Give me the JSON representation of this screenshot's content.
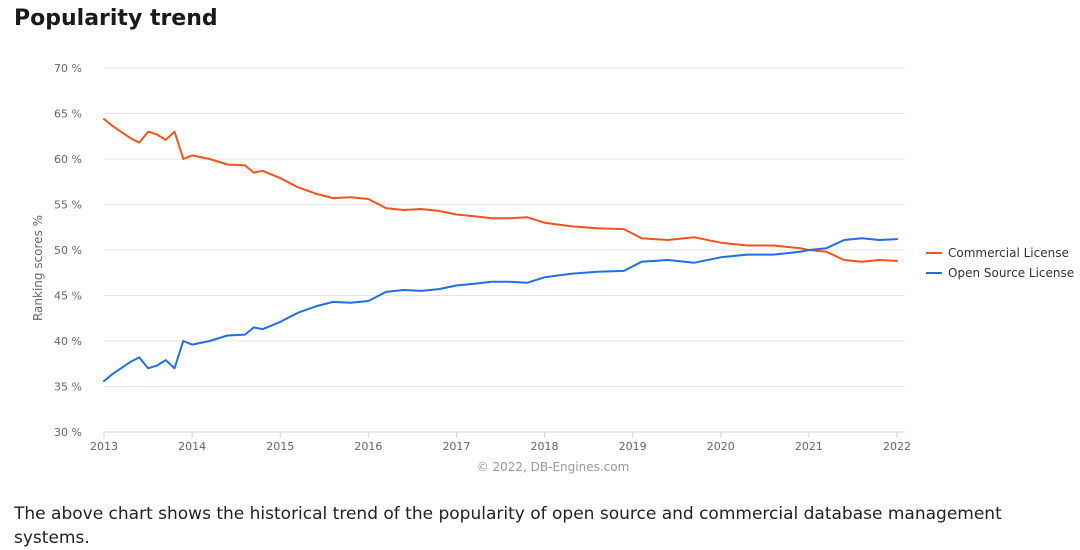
{
  "header": {
    "title": "Popularity trend"
  },
  "description": "The above chart shows the historical trend of the popularity of open source and commercial database management systems.",
  "chart_data": {
    "type": "line",
    "title": "Popularity trend",
    "xlabel": "",
    "ylabel": "Ranking scores %",
    "credits": "© 2022, DB-Engines.com",
    "xlim": [
      2013,
      2022
    ],
    "ylim": [
      30,
      70
    ],
    "xticks": [
      "2013",
      "2014",
      "2015",
      "2016",
      "2017",
      "2018",
      "2019",
      "2020",
      "2021",
      "2022"
    ],
    "yticks": [
      "30 %",
      "35 %",
      "40 %",
      "45 %",
      "50 %",
      "55 %",
      "60 %",
      "65 %",
      "70 %"
    ],
    "grid": "horizontal",
    "legend_position": "right",
    "series": [
      {
        "name": "Commercial License",
        "color": "#f0541d",
        "x": [
          2013.0,
          2013.1,
          2013.3,
          2013.4,
          2013.5,
          2013.6,
          2013.7,
          2013.8,
          2013.9,
          2014.0,
          2014.2,
          2014.4,
          2014.6,
          2014.7,
          2014.8,
          2015.0,
          2015.2,
          2015.4,
          2015.6,
          2015.8,
          2016.0,
          2016.2,
          2016.4,
          2016.6,
          2016.8,
          2017.0,
          2017.2,
          2017.4,
          2017.6,
          2017.8,
          2018.0,
          2018.3,
          2018.6,
          2018.9,
          2019.1,
          2019.4,
          2019.7,
          2020.0,
          2020.3,
          2020.6,
          2020.9,
          2021.0,
          2021.2,
          2021.4,
          2021.6,
          2021.8,
          2022.0
        ],
        "values": [
          64.4,
          63.6,
          62.3,
          61.8,
          63.0,
          62.7,
          62.1,
          63.0,
          60.0,
          60.4,
          60.0,
          59.4,
          59.3,
          58.5,
          58.7,
          57.9,
          56.9,
          56.2,
          55.7,
          55.8,
          55.6,
          54.6,
          54.4,
          54.5,
          54.3,
          53.9,
          53.7,
          53.5,
          53.5,
          53.6,
          53.0,
          52.6,
          52.4,
          52.3,
          51.3,
          51.1,
          51.4,
          50.8,
          50.5,
          50.5,
          50.2,
          50.0,
          49.8,
          48.9,
          48.7,
          48.9,
          48.8
        ]
      },
      {
        "name": "Open Source License",
        "color": "#1f6fe5",
        "x": [
          2013.0,
          2013.1,
          2013.3,
          2013.4,
          2013.5,
          2013.6,
          2013.7,
          2013.8,
          2013.9,
          2014.0,
          2014.2,
          2014.4,
          2014.6,
          2014.7,
          2014.8,
          2015.0,
          2015.2,
          2015.4,
          2015.6,
          2015.8,
          2016.0,
          2016.2,
          2016.4,
          2016.6,
          2016.8,
          2017.0,
          2017.2,
          2017.4,
          2017.6,
          2017.8,
          2018.0,
          2018.3,
          2018.6,
          2018.9,
          2019.1,
          2019.4,
          2019.7,
          2020.0,
          2020.3,
          2020.6,
          2020.9,
          2021.0,
          2021.2,
          2021.4,
          2021.6,
          2021.8,
          2022.0
        ],
        "values": [
          35.6,
          36.4,
          37.7,
          38.2,
          37.0,
          37.3,
          37.9,
          37.0,
          40.0,
          39.6,
          40.0,
          40.6,
          40.7,
          41.5,
          41.3,
          42.1,
          43.1,
          43.8,
          44.3,
          44.2,
          44.4,
          45.4,
          45.6,
          45.5,
          45.7,
          46.1,
          46.3,
          46.5,
          46.5,
          46.4,
          47.0,
          47.4,
          47.6,
          47.7,
          48.7,
          48.9,
          48.6,
          49.2,
          49.5,
          49.5,
          49.8,
          50.0,
          50.2,
          51.1,
          51.3,
          51.1,
          51.2
        ]
      }
    ]
  }
}
